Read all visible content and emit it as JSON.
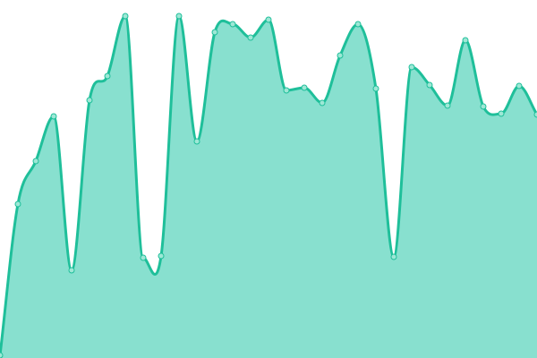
{
  "chart_data": {
    "type": "area",
    "x": [
      0,
      1,
      2,
      3,
      4,
      5,
      6,
      7,
      8,
      9,
      10,
      11,
      12,
      13,
      14,
      15,
      16,
      17,
      18,
      19,
      20,
      21,
      22,
      23,
      24,
      25,
      26,
      27,
      28,
      29,
      30
    ],
    "values": [
      3,
      172,
      220,
      270,
      98,
      288,
      315,
      382,
      112,
      114,
      382,
      242,
      364,
      373,
      358,
      378,
      299,
      302,
      285,
      338,
      373,
      301,
      113,
      325,
      305,
      282,
      355,
      281,
      273,
      304,
      272
    ],
    "ylim": [
      0,
      400
    ],
    "grid": false,
    "curve": "smooth",
    "markers": true,
    "colors": {
      "line": "#1fbf9a",
      "fill": "#88e0cf",
      "marker_fill": "#9ee8d6"
    }
  }
}
